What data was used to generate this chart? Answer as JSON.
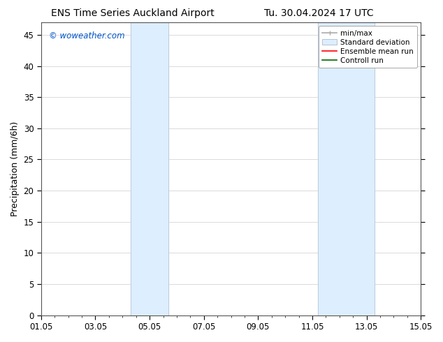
{
  "title_left": "ENS Time Series Auckland Airport",
  "title_right": "Tu. 30.04.2024 17 UTC",
  "ylabel": "Precipitation (mm/6h)",
  "ylim": [
    0,
    47
  ],
  "yticks": [
    0,
    5,
    10,
    15,
    20,
    25,
    30,
    35,
    40,
    45
  ],
  "xlim_start": 0,
  "xlim_end": 14,
  "xtick_labels": [
    "01.05",
    "03.05",
    "05.05",
    "07.05",
    "09.05",
    "11.05",
    "13.05",
    "15.05"
  ],
  "xtick_positions": [
    0,
    2,
    4,
    6,
    8,
    10,
    12,
    14
  ],
  "shade_bands": [
    {
      "x_start": 3.3,
      "x_end": 4.7
    },
    {
      "x_start": 10.2,
      "x_end": 12.3
    }
  ],
  "shade_color": "#ddeeff",
  "shade_edge_color": "#bbccdd",
  "watermark_text": "© woweather.com",
  "watermark_color": "#0055cc",
  "legend_items": [
    {
      "label": "min/max",
      "color": "#aaaaaa",
      "lw": 1.5
    },
    {
      "label": "Standard deviation",
      "color": "#ddeeff",
      "lw": 8
    },
    {
      "label": "Ensemble mean run",
      "color": "#ff0000",
      "lw": 1.5
    },
    {
      "label": "Controll run",
      "color": "#006600",
      "lw": 1.5
    }
  ],
  "bg_color": "#ffffff",
  "grid_color": "#cccccc",
  "title_fontsize": 10,
  "tick_fontsize": 8.5,
  "ylabel_fontsize": 9,
  "watermark_fontsize": 8.5,
  "legend_fontsize": 7.5
}
